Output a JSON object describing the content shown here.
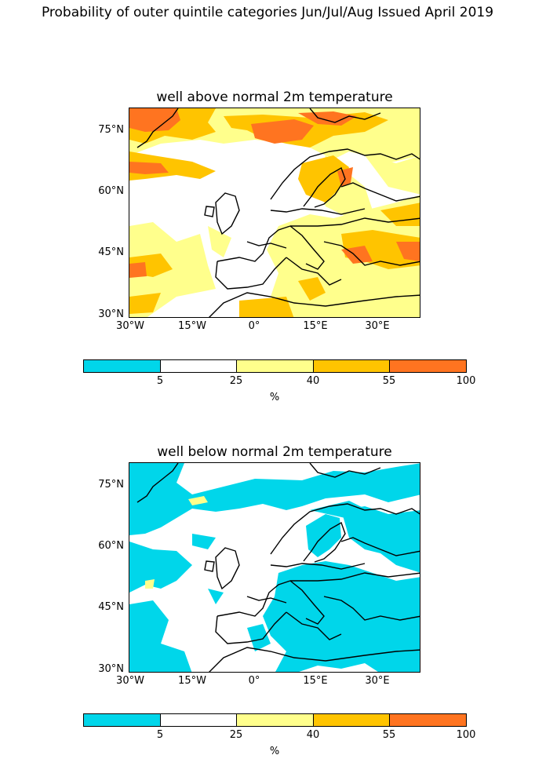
{
  "figure": {
    "title": "Probability of outer quintile categories Jun/Jul/Aug Issued April 2019"
  },
  "panels": [
    {
      "title": "well above normal 2m temperature",
      "lat_labels": [
        "75°N",
        "60°N",
        "45°N",
        "30°N"
      ],
      "lon_labels": [
        "30°W",
        "15°W",
        "0°",
        "15°E",
        "30°E"
      ],
      "dominant_category": "25-40 and 40-55 over most land and much of the sea; 55-100 patches near Greenland/Svalbard, Norwegian Sea, Scandinavia, Balkans, Turkey and eastern Atlantic"
    },
    {
      "title": "well below normal 2m temperature",
      "lat_labels": [
        "75°N",
        "60°N",
        "45°N",
        "30°N"
      ],
      "lon_labels": [
        "30°W",
        "15°W",
        "0°",
        "15°E",
        "30°E"
      ],
      "dominant_category": "0-5 over much of the Atlantic, Scandinavia, eastern and southern Europe; 5-25 elsewhere; small 25-40 patches"
    }
  ],
  "colorbar": {
    "ticks": [
      "5",
      "25",
      "40",
      "55",
      "100"
    ],
    "unit": "%",
    "colors": [
      "#00d6ea",
      "#ffffff",
      "#ffff8c",
      "#ffc400",
      "#ff7420"
    ],
    "categories": [
      "0-5",
      "5-25",
      "25-40",
      "40-55",
      "55-100"
    ]
  },
  "map_extent": {
    "lon": [
      -30,
      40
    ],
    "lat": [
      30,
      80
    ]
  }
}
